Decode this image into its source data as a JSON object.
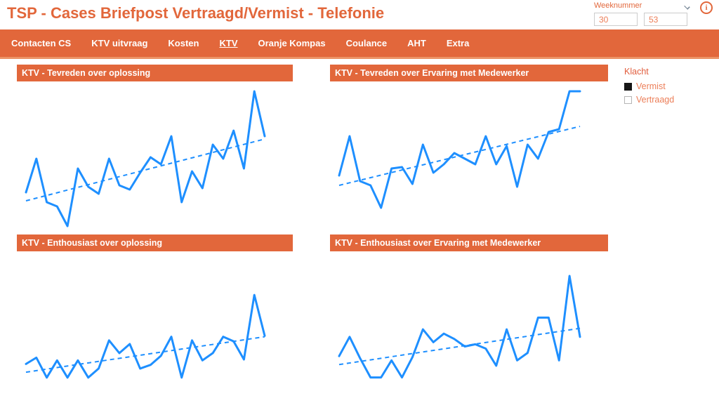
{
  "header": {
    "title": "TSP - Cases Briefpost Vertraagd/Vermist - Telefonie",
    "slicer": {
      "label": "Weeknummer",
      "from": "30",
      "to": "53"
    }
  },
  "nav": {
    "items": [
      {
        "label": "Contacten CS",
        "active": false
      },
      {
        "label": "KTV uitvraag",
        "active": false
      },
      {
        "label": "Kosten",
        "active": false
      },
      {
        "label": "KTV",
        "active": true
      },
      {
        "label": "Oranje Kompas",
        "active": false
      },
      {
        "label": "Coulance",
        "active": false
      },
      {
        "label": "AHT",
        "active": false
      },
      {
        "label": "Extra",
        "active": false
      }
    ]
  },
  "legend": {
    "title": "Klacht",
    "items": [
      {
        "label": "Vermist",
        "checked": true
      },
      {
        "label": "Vertraagd",
        "checked": false
      }
    ]
  },
  "colors": {
    "accent": "#E2673B",
    "nav_strip": "#EC9366",
    "chart_line": "#1E8FFF",
    "legend_title_color": "#E15D3D",
    "legend_item_color": "#EC7E58"
  },
  "chart_data": [
    {
      "type": "line",
      "title": "KTV - Tevreden over oplossing",
      "values": [
        28,
        52,
        21,
        18,
        4,
        45,
        32,
        27,
        52,
        33,
        30,
        42,
        53,
        48,
        68,
        21,
        43,
        31,
        62,
        52,
        72,
        45,
        100,
        68
      ],
      "trend": {
        "start": 22,
        "end": 66
      },
      "ylim": [
        0,
        107
      ],
      "axes_hidden": true,
      "grid": false,
      "legend_position": "none"
    },
    {
      "type": "line",
      "title": "KTV - Tevreden over Ervaring met Medewerker",
      "values": [
        40,
        68,
        36,
        33,
        17,
        45,
        46,
        34,
        62,
        42,
        48,
        56,
        52,
        48,
        68,
        48,
        61,
        32,
        62,
        52,
        71,
        73,
        100,
        100
      ],
      "trend": {
        "start": 33,
        "end": 75
      },
      "ylim": [
        0,
        107
      ],
      "axes_hidden": true,
      "grid": false,
      "legend_position": "none"
    },
    {
      "type": "line",
      "title": "KTV - Enthousiast over oplossing",
      "values": [
        21,
        28,
        6,
        25,
        6,
        25,
        6,
        16,
        47,
        33,
        43,
        16,
        20,
        30,
        51,
        6,
        47,
        25,
        33,
        51,
        46,
        26,
        97,
        52
      ],
      "trend": {
        "start": 12,
        "end": 51
      },
      "ylim": [
        -15,
        145
      ],
      "axes_hidden": true,
      "grid": false,
      "legend_position": "none"
    },
    {
      "type": "line",
      "title": "KTV - Enthousiast over Ervaring met Medewerker",
      "values": [
        25,
        43,
        23,
        5,
        5,
        21,
        5,
        24,
        50,
        38,
        46,
        41,
        34,
        36,
        32,
        16,
        50,
        21,
        28,
        61,
        61,
        21,
        100,
        43
      ],
      "trend": {
        "start": 17,
        "end": 51
      },
      "ylim": [
        -13,
        123
      ],
      "axes_hidden": true,
      "grid": false,
      "legend_position": "none"
    }
  ]
}
